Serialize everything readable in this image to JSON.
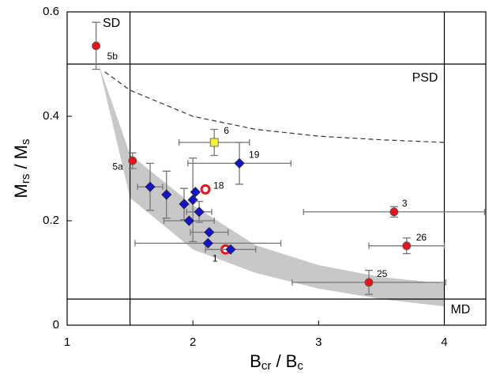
{
  "chart_data": {
    "type": "scatter",
    "xlabel": [
      {
        "text": "B"
      },
      {
        "text": "cr",
        "sub": true
      },
      {
        "text": " / B"
      },
      {
        "text": "c",
        "sub": true
      }
    ],
    "ylabel": [
      {
        "text": "M"
      },
      {
        "text": "rs",
        "sub": true
      },
      {
        "text": " / M"
      },
      {
        "text": "s",
        "sub": true
      }
    ],
    "xlim": [
      1,
      4.33
    ],
    "ylim": [
      0,
      0.6
    ],
    "xticks": [
      1,
      2,
      3,
      4
    ],
    "yticks": [
      0,
      0.2,
      0.4,
      0.6
    ],
    "boundaries": {
      "x": [
        1.5,
        4
      ],
      "y": [
        0.05,
        0.5
      ]
    },
    "regions": [
      "SD",
      "PSD",
      "MD"
    ],
    "band": {
      "color": "#c8c8c8",
      "x": [
        1.25,
        1.5,
        2,
        2.5,
        3,
        3.5,
        4
      ],
      "upper": [
        0.5,
        0.327,
        0.23,
        0.153,
        0.115,
        0.092,
        0.08
      ],
      "lower": [
        0.5,
        0.244,
        0.145,
        0.1,
        0.07,
        0.05,
        0.036
      ]
    },
    "dashed": {
      "color": "#333333",
      "x": [
        1.3,
        1.5,
        2,
        2.5,
        3,
        3.5,
        4
      ],
      "y": [
        0.485,
        0.45,
        0.4,
        0.375,
        0.362,
        0.355,
        0.35
      ]
    },
    "points": [
      {
        "x": 1.23,
        "y": 0.535,
        "yerr": 0.045,
        "marker": "circle",
        "color": "#e8141c",
        "label": "5b",
        "label_color": "#e8141c"
      },
      {
        "x": 1.52,
        "y": 0.315,
        "yerr": 0.015,
        "marker": "circle",
        "color": "#e8141c",
        "label": "5a",
        "label_color": "#e8141c"
      },
      {
        "x": 2.17,
        "y": 0.35,
        "xerr": 0.28,
        "yerr": 0.025,
        "marker": "square",
        "color": "#f5f032",
        "label": "6",
        "label_color": "#666666"
      },
      {
        "x": 2.37,
        "y": 0.31,
        "xerr": 0.41,
        "yerr": 0.04,
        "marker": "diamond",
        "color": "#1414d0",
        "label": "19",
        "label_color": "#1414d0"
      },
      {
        "x": 2.1,
        "y": 0.26,
        "marker": "ring",
        "color": "#e8141c",
        "label": "18",
        "label_color": "#e8141c"
      },
      {
        "x": 3.6,
        "y": 0.217,
        "xerr": 0.72,
        "yerr": 0.01,
        "marker": "circle",
        "color": "#e8141c",
        "label": "3",
        "label_color": "#e8141c"
      },
      {
        "x": 3.7,
        "y": 0.152,
        "xerr": 0.3,
        "yerr": 0.015,
        "marker": "circle",
        "color": "#e8141c",
        "label": "26",
        "label_color": "#e8141c"
      },
      {
        "x": 3.4,
        "y": 0.082,
        "xerr": 0.61,
        "yerr": 0.023,
        "marker": "circle",
        "color": "#e8141c",
        "label": "25",
        "label_color": "#e8141c"
      },
      {
        "x": 2.26,
        "y": 0.145,
        "marker": "ring",
        "color": "#e8141c",
        "label": "1",
        "label_color": "#e8141c"
      },
      {
        "x": 1.66,
        "y": 0.265,
        "xerr": 0.1,
        "yerr": 0.045,
        "marker": "diamond",
        "color": "#1414d0"
      },
      {
        "x": 1.79,
        "y": 0.25,
        "yerr": 0.045,
        "marker": "diamond",
        "color": "#1414d0"
      },
      {
        "x": 1.93,
        "y": 0.232,
        "yerr": 0.03,
        "marker": "diamond",
        "color": "#1414d0"
      },
      {
        "x": 2.0,
        "y": 0.24,
        "yerr": 0.08,
        "marker": "diamond",
        "color": "#1414d0"
      },
      {
        "x": 2.02,
        "y": 0.255,
        "marker": "diamond",
        "color": "#1414d0"
      },
      {
        "x": 1.97,
        "y": 0.2,
        "xerr": 0.2,
        "marker": "diamond",
        "color": "#1414d0"
      },
      {
        "x": 2.05,
        "y": 0.217,
        "xerr": 0.1,
        "yerr": 0.02,
        "marker": "diamond",
        "color": "#1414d0"
      },
      {
        "x": 2.13,
        "y": 0.178,
        "xerr": 0.15,
        "marker": "diamond",
        "color": "#1414d0"
      },
      {
        "x": 2.12,
        "y": 0.157,
        "xerr": 0.58,
        "marker": "diamond",
        "color": "#1414d0"
      },
      {
        "x": 2.3,
        "y": 0.145,
        "xerr": 0.2,
        "marker": "diamond",
        "color": "#1414d0"
      }
    ]
  }
}
